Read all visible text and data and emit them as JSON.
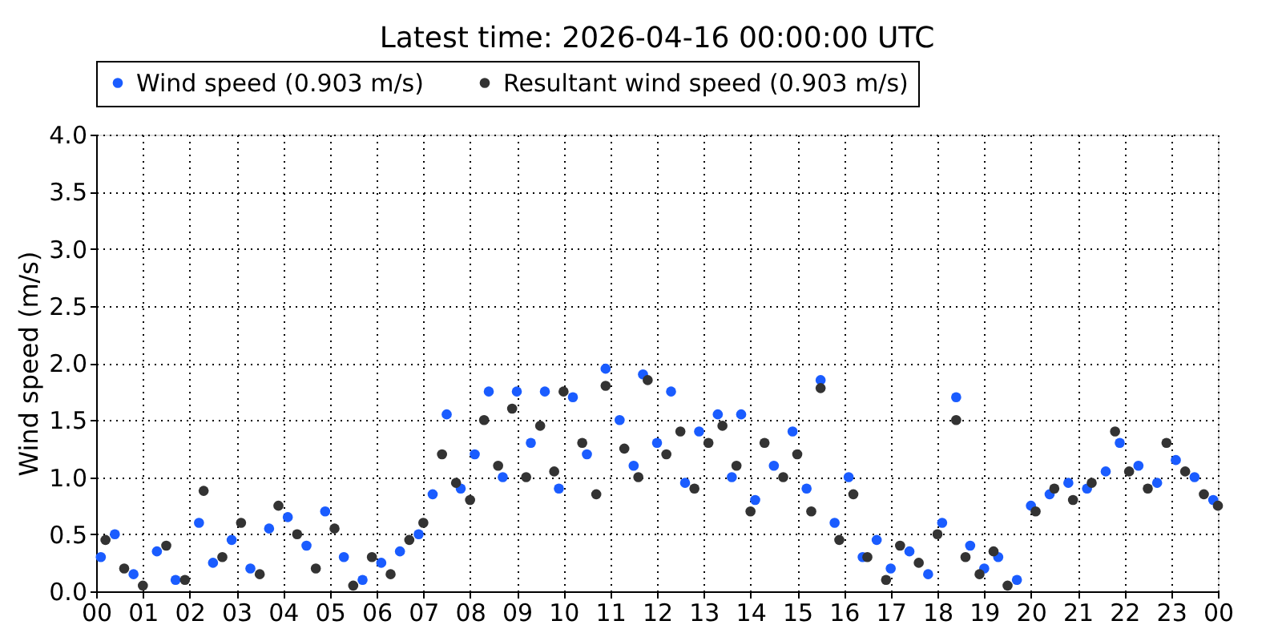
{
  "chart_data": {
    "type": "scatter",
    "title": "Latest time: 2026-04-16 00:00:00 UTC",
    "ylabel": "Wind speed (m/s)",
    "xlim": [
      0,
      24
    ],
    "xticks": [
      {
        "value": 0,
        "label": "00"
      },
      {
        "value": 1,
        "label": "01"
      },
      {
        "value": 2,
        "label": "02"
      },
      {
        "value": 3,
        "label": "03"
      },
      {
        "value": 4,
        "label": "04"
      },
      {
        "value": 5,
        "label": "05"
      },
      {
        "value": 6,
        "label": "06"
      },
      {
        "value": 7,
        "label": "07"
      },
      {
        "value": 8,
        "label": "08"
      },
      {
        "value": 9,
        "label": "09"
      },
      {
        "value": 10,
        "label": "10"
      },
      {
        "value": 11,
        "label": "11"
      },
      {
        "value": 12,
        "label": "12"
      },
      {
        "value": 13,
        "label": "13"
      },
      {
        "value": 14,
        "label": "14"
      },
      {
        "value": 15,
        "label": "15"
      },
      {
        "value": 16,
        "label": "16"
      },
      {
        "value": 17,
        "label": "17"
      },
      {
        "value": 18,
        "label": "18"
      },
      {
        "value": 19,
        "label": "19"
      },
      {
        "value": 20,
        "label": "20"
      },
      {
        "value": 21,
        "label": "21"
      },
      {
        "value": 22,
        "label": "22"
      },
      {
        "value": 23,
        "label": "23"
      },
      {
        "value": 24,
        "label": "00"
      }
    ],
    "ylim": [
      0,
      4
    ],
    "yticks": [
      {
        "value": 0,
        "label": "0.0"
      },
      {
        "value": 0.5,
        "label": "0.5"
      },
      {
        "value": 1,
        "label": "1.0"
      },
      {
        "value": 1.5,
        "label": "1.5"
      },
      {
        "value": 2,
        "label": "2.0"
      },
      {
        "value": 2.5,
        "label": "2.5"
      },
      {
        "value": 3,
        "label": "3.0"
      },
      {
        "value": 3.5,
        "label": "3.5"
      },
      {
        "value": 4,
        "label": "4.0"
      }
    ],
    "grid": true,
    "legend": "top",
    "marker": "circle",
    "series": [
      {
        "name": "Wind speed (0.903 m/s)",
        "color": "#1a5cff",
        "x": [
          0.1,
          0.4,
          0.8,
          1.3,
          1.7,
          2.2,
          2.5,
          2.9,
          3.3,
          3.7,
          4.1,
          4.5,
          4.9,
          5.3,
          5.7,
          6.1,
          6.5,
          6.9,
          7.2,
          7.5,
          7.8,
          8.1,
          8.4,
          8.7,
          9.0,
          9.3,
          9.6,
          9.9,
          10.2,
          10.5,
          10.9,
          11.2,
          11.5,
          11.7,
          12.0,
          12.3,
          12.6,
          12.9,
          13.3,
          13.6,
          13.8,
          14.1,
          14.5,
          14.9,
          15.2,
          15.5,
          15.8,
          16.1,
          16.4,
          16.7,
          17.0,
          17.4,
          17.8,
          18.1,
          18.4,
          18.7,
          19.0,
          19.3,
          19.7,
          20.0,
          20.4,
          20.8,
          21.2,
          21.6,
          21.9,
          22.3,
          22.7,
          23.1,
          23.5,
          23.9
        ],
        "values": [
          0.3,
          0.5,
          0.15,
          0.35,
          0.1,
          0.6,
          0.25,
          0.45,
          0.2,
          0.55,
          0.65,
          0.4,
          0.7,
          0.3,
          0.1,
          0.25,
          0.35,
          0.5,
          0.85,
          1.55,
          0.9,
          1.2,
          1.75,
          1.0,
          1.75,
          1.3,
          1.75,
          0.9,
          1.7,
          1.2,
          1.95,
          1.5,
          1.1,
          1.9,
          1.3,
          1.75,
          0.95,
          1.4,
          1.55,
          1.0,
          1.55,
          0.8,
          1.1,
          1.4,
          0.9,
          1.85,
          0.6,
          1.0,
          0.3,
          0.45,
          0.2,
          0.35,
          0.15,
          0.6,
          1.7,
          0.4,
          0.2,
          0.3,
          0.1,
          0.75,
          0.85,
          0.95,
          0.9,
          1.05,
          1.3,
          1.1,
          0.95,
          1.15,
          1.0,
          0.8
        ]
      },
      {
        "name": "Resultant wind speed (0.903 m/s)",
        "color": "#333333",
        "x": [
          0.2,
          0.6,
          1.0,
          1.5,
          1.9,
          2.3,
          2.7,
          3.1,
          3.5,
          3.9,
          4.3,
          4.7,
          5.1,
          5.5,
          5.9,
          6.3,
          6.7,
          7.0,
          7.4,
          7.7,
          8.0,
          8.3,
          8.6,
          8.9,
          9.2,
          9.5,
          9.8,
          10.0,
          10.4,
          10.7,
          10.9,
          11.3,
          11.6,
          11.8,
          12.2,
          12.5,
          12.8,
          13.1,
          13.4,
          13.7,
          14.0,
          14.3,
          14.7,
          15.0,
          15.3,
          15.5,
          15.9,
          16.2,
          16.5,
          16.9,
          17.2,
          17.6,
          18.0,
          18.4,
          18.6,
          18.9,
          19.2,
          19.5,
          20.1,
          20.5,
          20.9,
          21.3,
          21.8,
          22.1,
          22.5,
          22.9,
          23.3,
          23.7,
          24.0
        ],
        "values": [
          0.45,
          0.2,
          0.05,
          0.4,
          0.1,
          0.88,
          0.3,
          0.6,
          0.15,
          0.75,
          0.5,
          0.2,
          0.55,
          0.05,
          0.3,
          0.15,
          0.45,
          0.6,
          1.2,
          0.95,
          0.8,
          1.5,
          1.1,
          1.6,
          1.0,
          1.45,
          1.05,
          1.75,
          1.3,
          0.85,
          1.8,
          1.25,
          1.0,
          1.85,
          1.2,
          1.4,
          0.9,
          1.3,
          1.45,
          1.1,
          0.7,
          1.3,
          1.0,
          1.2,
          0.7,
          1.78,
          0.45,
          0.85,
          0.3,
          0.1,
          0.4,
          0.25,
          0.5,
          1.5,
          0.3,
          0.15,
          0.35,
          0.05,
          0.7,
          0.9,
          0.8,
          0.95,
          1.4,
          1.05,
          0.9,
          1.3,
          1.05,
          0.85,
          0.75
        ]
      }
    ]
  }
}
